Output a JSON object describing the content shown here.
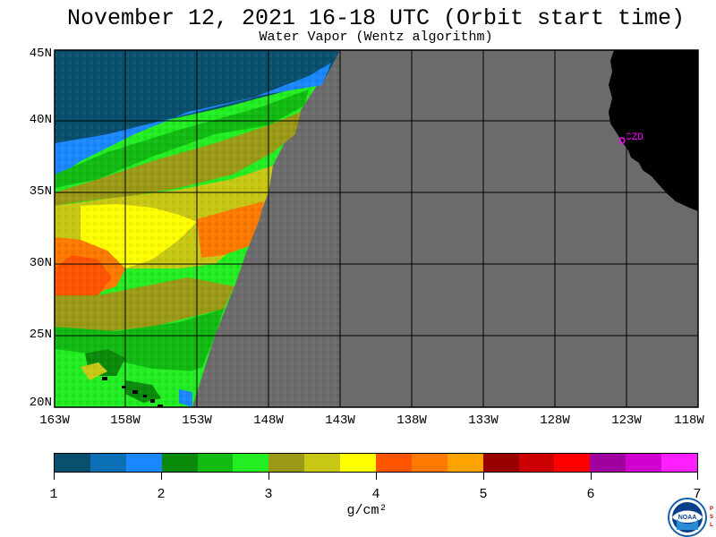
{
  "title": "November 12, 2021  16-18 UTC  (Orbit start time)",
  "subtitle": "Water Vapor (Wentz algorithm)",
  "map": {
    "lat_labels": [
      "45N",
      "40N",
      "35N",
      "30N",
      "25N",
      "20N"
    ],
    "lon_labels": [
      "163W",
      "158W",
      "153W",
      "148W",
      "143W",
      "138W",
      "133W",
      "128W",
      "123W",
      "118W"
    ],
    "station_label": "CZD",
    "colors": {
      "no_data": "#6b6b6b",
      "land": "#000000",
      "station": "#ff00ff",
      "grid": "#000000"
    }
  },
  "colorbar": {
    "colors": [
      "#08506e",
      "#0b6fb5",
      "#1a87ff",
      "#0a8a0a",
      "#11bb11",
      "#22ee22",
      "#9a9a16",
      "#c8c814",
      "#ffff00",
      "#ff5500",
      "#ff7a00",
      "#ffa300",
      "#9a0000",
      "#cc0000",
      "#ff0000",
      "#a000a0",
      "#d000d0",
      "#ff20ff"
    ],
    "tick_labels": [
      "1",
      "2",
      "3",
      "4",
      "5",
      "6",
      "7"
    ],
    "units": "g/cm²"
  },
  "logo": {
    "name": "NOAA",
    "side_text": "PSL"
  }
}
